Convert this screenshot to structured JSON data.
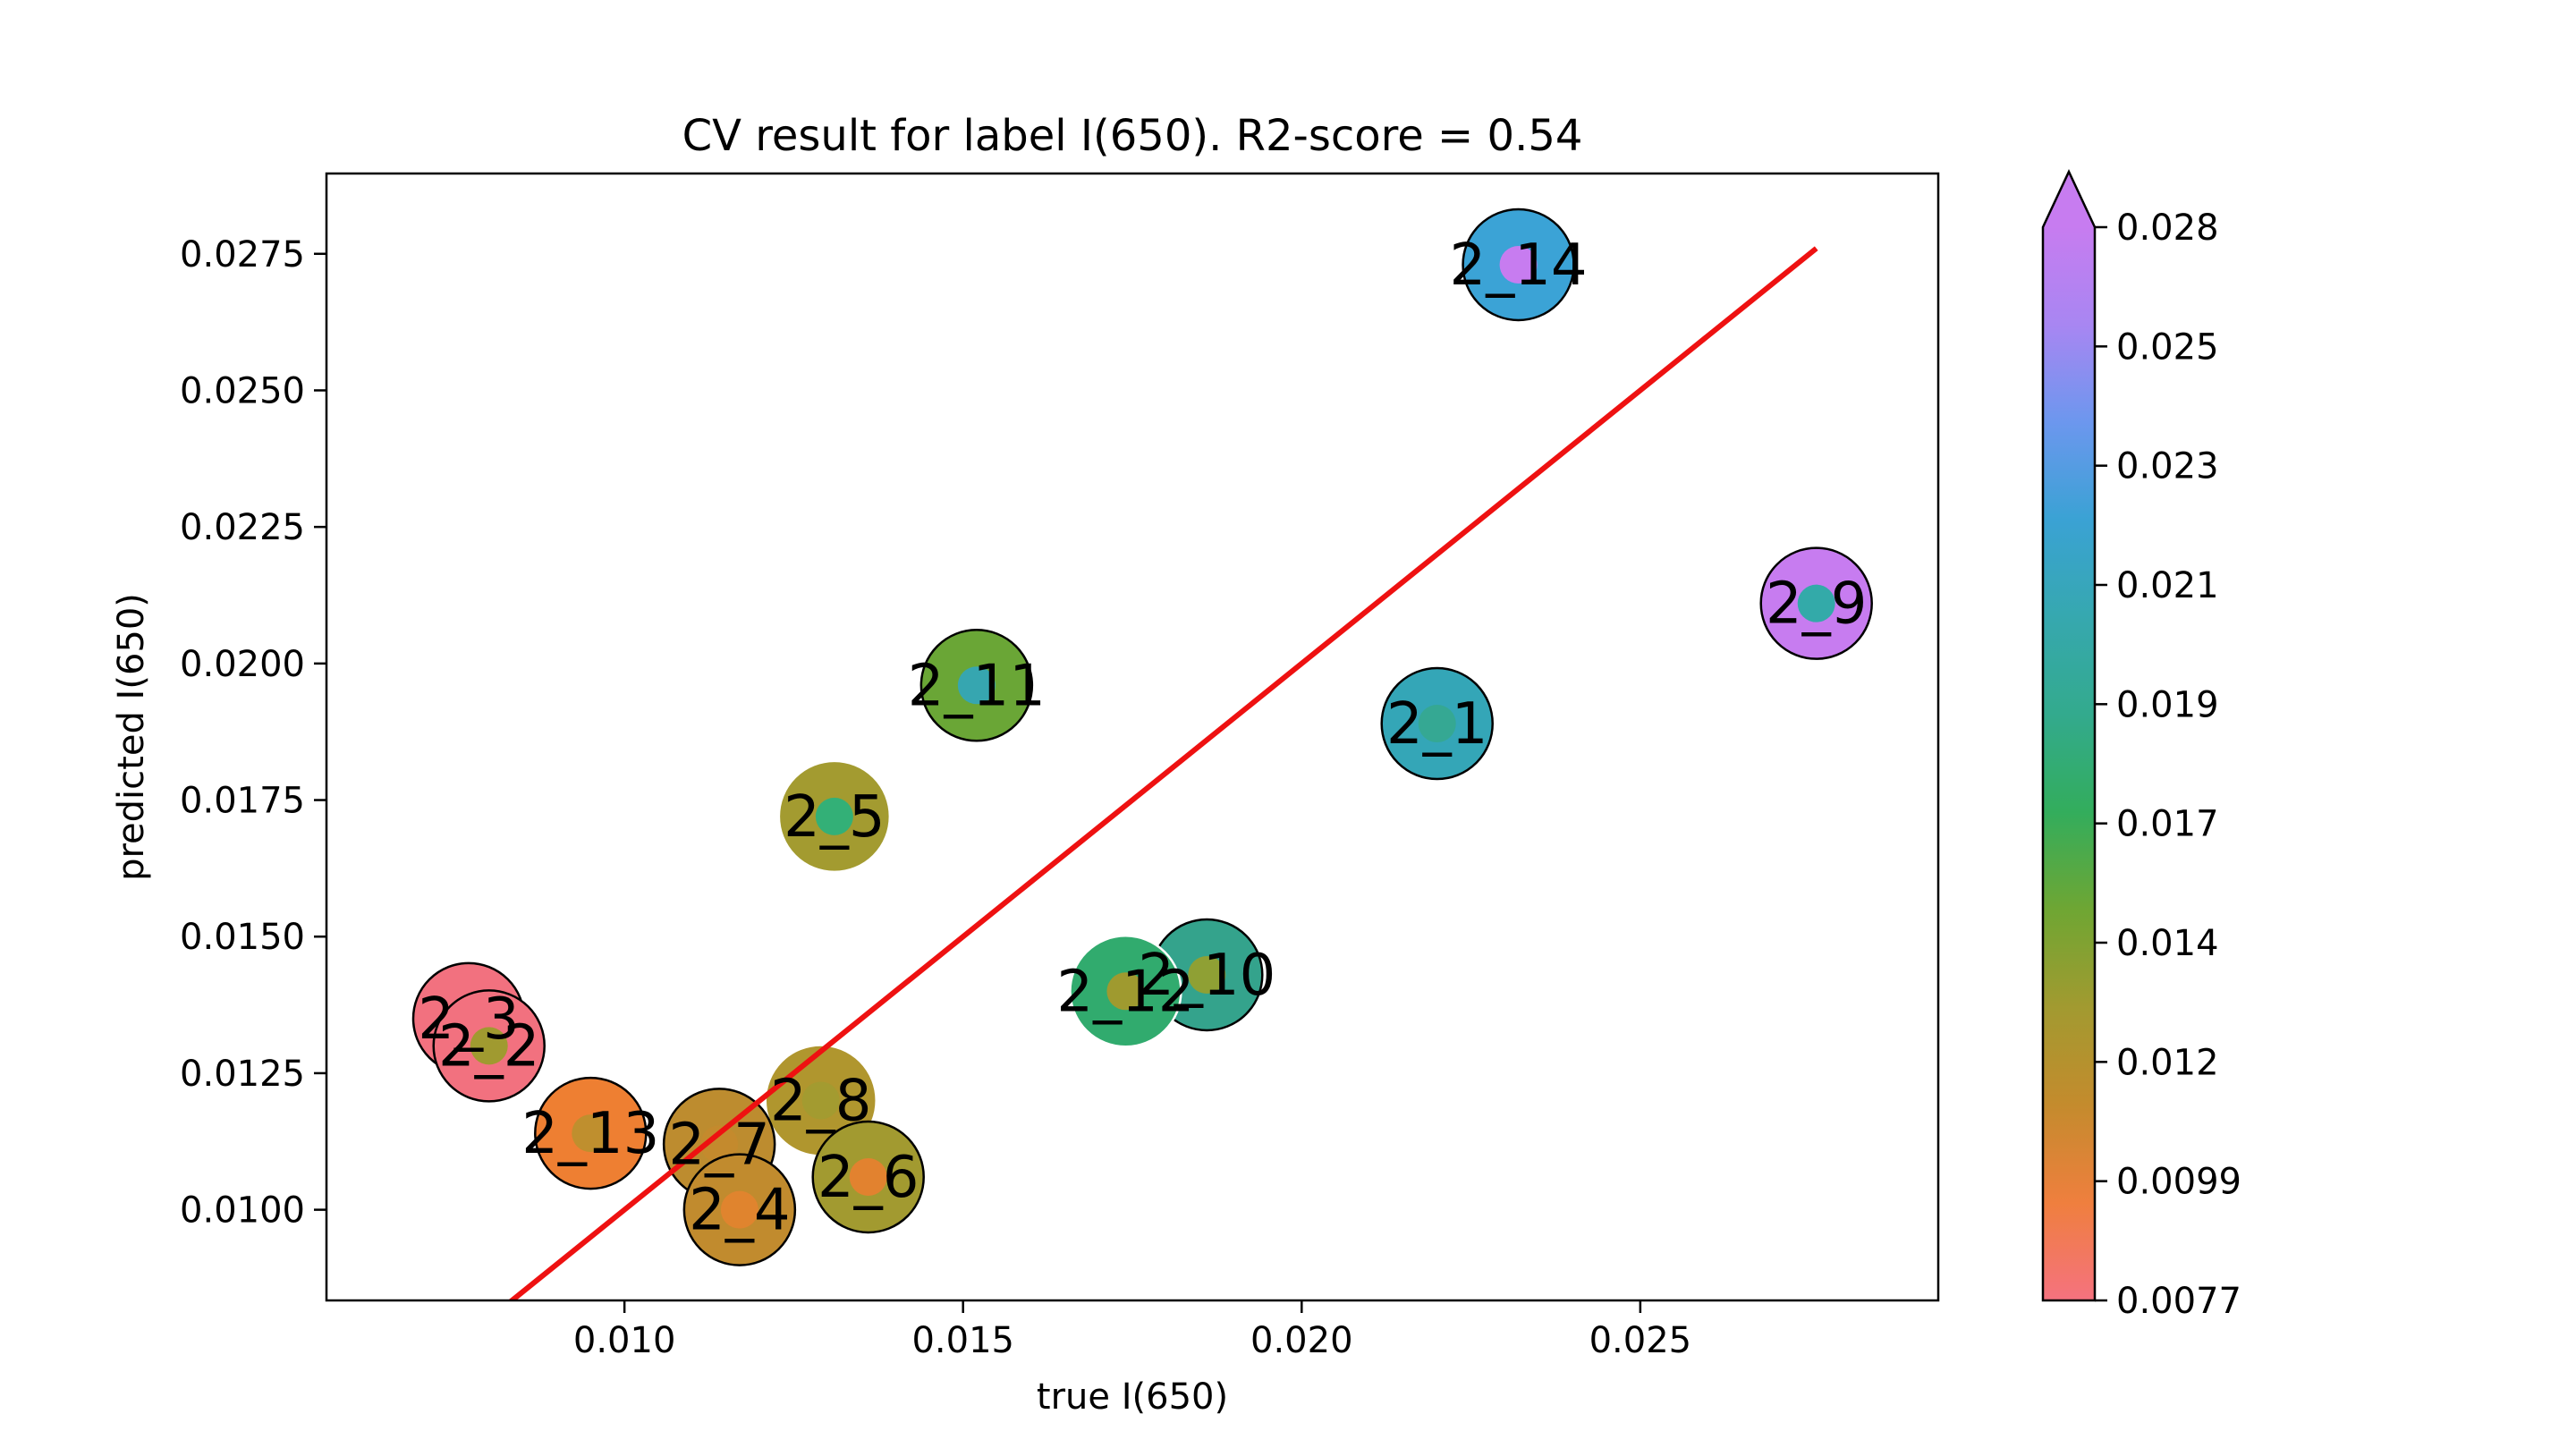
{
  "chart_data": {
    "type": "scatter",
    "title": "CV result for label I(650). R2-score = 0.54",
    "xlabel": "true I(650)",
    "ylabel": "predicted I(650)",
    "xlim": [
      0.0056,
      0.0294
    ],
    "ylim": [
      0.00834,
      0.02897
    ],
    "xticks": [
      {
        "value": 0.01,
        "label": "0.010"
      },
      {
        "value": 0.015,
        "label": "0.015"
      },
      {
        "value": 0.02,
        "label": "0.020"
      },
      {
        "value": 0.025,
        "label": "0.025"
      }
    ],
    "yticks": [
      {
        "value": 0.01,
        "label": "0.0100"
      },
      {
        "value": 0.0125,
        "label": "0.0125"
      },
      {
        "value": 0.015,
        "label": "0.0150"
      },
      {
        "value": 0.0175,
        "label": "0.0175"
      },
      {
        "value": 0.02,
        "label": "0.0200"
      },
      {
        "value": 0.0225,
        "label": "0.0225"
      },
      {
        "value": 0.025,
        "label": "0.0250"
      },
      {
        "value": 0.0275,
        "label": "0.0275"
      }
    ],
    "reference_line": {
      "color": "#ee1111",
      "points": [
        [
          0.0082,
          0.0082
        ],
        [
          0.0276,
          0.0276
        ]
      ]
    },
    "points": [
      {
        "label": "2_14",
        "x": 0.0232,
        "y": 0.0273,
        "outer_color": "#3ba3d6",
        "inner_color": "#c77cf0",
        "edge": "#000000"
      },
      {
        "label": "2_9",
        "x": 0.0276,
        "y": 0.0211,
        "outer_color": "#c77cf0",
        "inner_color": "#33aaa9",
        "edge": "#000000"
      },
      {
        "label": "2_1",
        "x": 0.022,
        "y": 0.0189,
        "outer_color": "#34a6b7",
        "inner_color": "#35a893",
        "edge": "#000000"
      },
      {
        "label": "2_11",
        "x": 0.0152,
        "y": 0.0196,
        "outer_color": "#6aa636",
        "inner_color": "#36a6b0",
        "edge": "#000000"
      },
      {
        "label": "2_5",
        "x": 0.0131,
        "y": 0.0172,
        "outer_color": "#a39b30",
        "inner_color": "#33b077",
        "edge": "#ffffff"
      },
      {
        "label": "2_10",
        "x": 0.0186,
        "y": 0.0143,
        "outer_color": "#34a38c",
        "inner_color": "#8fa034",
        "edge": "#000000"
      },
      {
        "label": "2_12",
        "x": 0.0174,
        "y": 0.014,
        "outer_color": "#31ab6e",
        "inner_color": "#9f9a2f",
        "edge": "#ffffff"
      },
      {
        "label": "2_3",
        "x": 0.0077,
        "y": 0.0135,
        "outer_color": "#f2717f",
        "inner_color": "#9c9c31",
        "edge": "#000000"
      },
      {
        "label": "2_2",
        "x": 0.008,
        "y": 0.013,
        "outer_color": "#f2717f",
        "inner_color": "#a09a30",
        "edge": "#000000"
      },
      {
        "label": "2_8",
        "x": 0.0129,
        "y": 0.012,
        "outer_color": "#b0962e",
        "inner_color": "#a39b30",
        "edge": "#ffffff"
      },
      {
        "label": "2_13",
        "x": 0.0095,
        "y": 0.0114,
        "outer_color": "#ee7f32",
        "inner_color": "#bf8f2e",
        "edge": "#000000"
      },
      {
        "label": "2_7",
        "x": 0.0114,
        "y": 0.0112,
        "outer_color": "#bd8c2f",
        "inner_color": "#c48a2d",
        "edge": "#000000"
      },
      {
        "label": "2_6",
        "x": 0.0136,
        "y": 0.0106,
        "outer_color": "#a29a30",
        "inner_color": "#e2822f",
        "edge": "#000000"
      },
      {
        "label": "2_4",
        "x": 0.0117,
        "y": 0.01,
        "outer_color": "#c18b2e",
        "inner_color": "#e0842e",
        "edge": "#000000"
      }
    ],
    "colorbar": {
      "min": 0.0077,
      "max": 0.028,
      "extend": "max",
      "gradient": [
        "#f5727f",
        "#ef7f3e",
        "#c48b2d",
        "#a29a30",
        "#6fa633",
        "#33ad5c",
        "#33aa8d",
        "#36a8af",
        "#3aa2d4",
        "#6c97ee",
        "#a886f2",
        "#c77cf0"
      ],
      "ticks": [
        "0.0077",
        "0.0099",
        "0.012",
        "0.014",
        "0.017",
        "0.019",
        "0.021",
        "0.023",
        "0.025",
        "0.028"
      ]
    },
    "grid": false,
    "legend": "none"
  }
}
